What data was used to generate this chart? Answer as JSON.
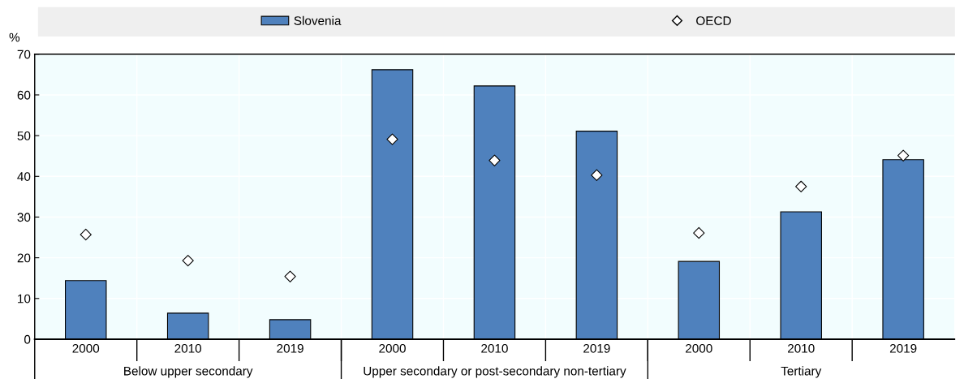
{
  "chart_data": {
    "type": "bar",
    "ylabel": "%",
    "categories": [
      "2000",
      "2010",
      "2019",
      "2000",
      "2010",
      "2019",
      "2000",
      "2010",
      "2019"
    ],
    "series": [
      {
        "name": "Slovenia",
        "color": "#4f81bd",
        "values": [
          14.4,
          6.4,
          4.8,
          66.2,
          62.2,
          51.1,
          19.1,
          31.3,
          44.1
        ]
      },
      {
        "name": "OECD",
        "type": "scatter",
        "color": "#ffffff",
        "marker": "diamond",
        "values": [
          25.7,
          19.3,
          15.4,
          49.1,
          43.9,
          40.3,
          26.1,
          37.5,
          45.1
        ]
      }
    ],
    "annotations": [
      "Below upper secondary",
      "Upper secondary or post-secondary non-tertiary",
      "Tertiary"
    ],
    "ylim": [
      0,
      70
    ],
    "yticks": [
      0,
      10,
      20,
      30,
      40,
      50,
      60,
      70
    ],
    "grid": true,
    "legend": "top"
  }
}
